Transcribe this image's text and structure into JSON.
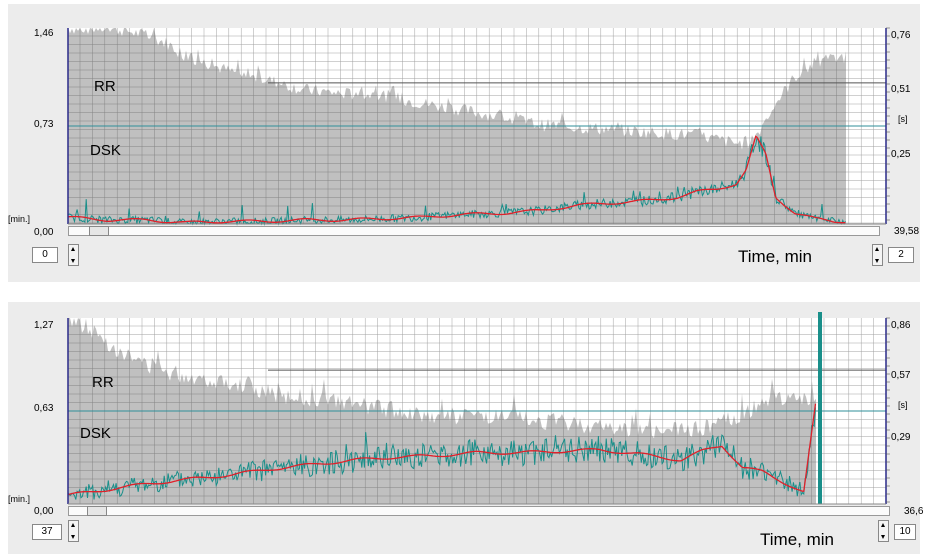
{
  "colors": {
    "grid": "#555555",
    "gray_fill": "#c0c0c0",
    "teal": "#1a8f8a",
    "red": "#e0202a",
    "ref_line": "#2f8f9a",
    "axis": "#2a2a8a"
  },
  "chart_data": [
    {
      "type": "area",
      "series": [
        {
          "name": "RR",
          "x": [
            0,
            1,
            2,
            3,
            4,
            5,
            6,
            7,
            8,
            9,
            10,
            12,
            14,
            16,
            18,
            20,
            22,
            24,
            26,
            28,
            30,
            31,
            32,
            33,
            34,
            34.5,
            35,
            36,
            37,
            38,
            39.58
          ],
          "values": [
            1.46,
            1.46,
            1.46,
            1.44,
            1.4,
            1.35,
            1.25,
            1.2,
            1.15,
            1.1,
            1.08,
            1.0,
            0.97,
            0.96,
            0.9,
            0.85,
            0.8,
            0.74,
            0.72,
            0.7,
            0.68,
            0.67,
            0.66,
            0.63,
            0.6,
            0.6,
            0.66,
            0.9,
            1.1,
            1.2,
            1.25
          ]
        },
        {
          "name": "DSK",
          "x": [
            0,
            2,
            4,
            6,
            8,
            10,
            12,
            14,
            16,
            18,
            20,
            22,
            24,
            26,
            28,
            30,
            31,
            32,
            33,
            33.5,
            34,
            34.5,
            35,
            35.5,
            36,
            37,
            38,
            39
          ],
          "values": [
            0.05,
            0.03,
            0.03,
            0.01,
            0.02,
            0.02,
            0.03,
            0.03,
            0.04,
            0.05,
            0.07,
            0.08,
            0.1,
            0.14,
            0.16,
            0.18,
            0.2,
            0.24,
            0.26,
            0.28,
            0.3,
            0.4,
            0.65,
            0.52,
            0.2,
            0.08,
            0.04,
            0.02
          ]
        }
      ],
      "y_left_ticks": [
        "1,46",
        "0,73",
        "0,00"
      ],
      "y_right_ticks": [
        "0,76",
        "0,51",
        "0,25"
      ],
      "left_unit": "[min.]",
      "right_unit": "[s]",
      "x_end": "39,58",
      "spin_left": "0",
      "spin_right": "2",
      "xlim": [
        0,
        39.58
      ],
      "ylim": [
        0,
        1.46
      ],
      "xlabel": "Time, min",
      "labels": [
        "RR",
        "DSK"
      ],
      "grid": true
    },
    {
      "type": "area",
      "series": [
        {
          "name": "RR",
          "x": [
            0,
            1,
            2,
            3,
            4,
            5,
            6,
            7,
            8,
            9,
            10,
            12,
            14,
            16,
            18,
            20,
            22,
            24,
            26,
            28,
            30,
            31,
            32,
            33,
            34,
            35,
            36,
            37
          ],
          "values": [
            1.27,
            1.2,
            1.1,
            1.0,
            0.95,
            0.9,
            0.87,
            0.85,
            0.83,
            0.8,
            0.75,
            0.72,
            0.68,
            0.64,
            0.6,
            0.6,
            0.58,
            0.56,
            0.53,
            0.5,
            0.5,
            0.52,
            0.56,
            0.6,
            0.7,
            0.72,
            0.73,
            0.73
          ]
        },
        {
          "name": "DSK",
          "x": [
            0,
            2,
            4,
            6,
            8,
            10,
            12,
            14,
            16,
            18,
            20,
            22,
            24,
            26,
            28,
            30,
            31,
            32,
            33,
            34,
            35,
            36,
            36.6
          ],
          "values": [
            0.06,
            0.1,
            0.14,
            0.17,
            0.2,
            0.24,
            0.27,
            0.3,
            0.32,
            0.33,
            0.35,
            0.35,
            0.36,
            0.37,
            0.34,
            0.3,
            0.36,
            0.4,
            0.25,
            0.22,
            0.15,
            0.08,
            0.7
          ]
        }
      ],
      "y_left_ticks": [
        "1,27",
        "0,63",
        "0,00"
      ],
      "y_right_ticks": [
        "0,86",
        "0,57",
        "0,29"
      ],
      "left_unit": "[min.]",
      "right_unit": "[s]",
      "x_end": "36,6",
      "spin_left": "37",
      "spin_right": "10",
      "xlim": [
        0,
        36.6
      ],
      "ylim": [
        0,
        1.27
      ],
      "xlabel": "Time, min",
      "labels": [
        "RR",
        "DSK"
      ],
      "grid": true
    }
  ]
}
